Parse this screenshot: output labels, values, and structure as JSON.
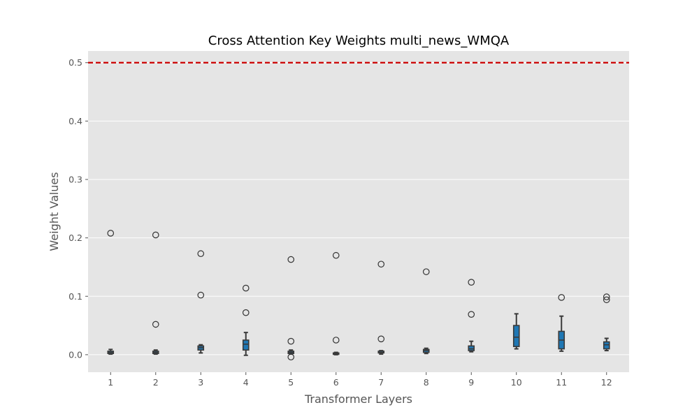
{
  "chart_data": {
    "type": "box",
    "title": "Cross Attention Key Weights multi_news_WMQA",
    "xlabel": "Transformer Layers",
    "ylabel": "Weight Values",
    "ylim": [
      -0.03,
      0.52
    ],
    "yticks": [
      "0.0",
      "0.1",
      "0.2",
      "0.3",
      "0.4",
      "0.5"
    ],
    "grid": true,
    "threshold": {
      "value": 0.5,
      "color": "#cc0000",
      "style": "dashed"
    },
    "box_color": "#1f77b4",
    "background": "#e5e5e5",
    "categories": [
      "1",
      "2",
      "3",
      "4",
      "5",
      "6",
      "7",
      "8",
      "9",
      "10",
      "11",
      "12"
    ],
    "boxes": [
      {
        "whisker_low": 0.001,
        "q1": 0.002,
        "median": 0.004,
        "q3": 0.006,
        "whisker_high": 0.009,
        "outliers": [
          0.208
        ]
      },
      {
        "whisker_low": 0.001,
        "q1": 0.002,
        "median": 0.004,
        "q3": 0.006,
        "whisker_high": 0.008,
        "outliers": [
          0.205,
          0.052
        ]
      },
      {
        "whisker_low": 0.003,
        "q1": 0.008,
        "median": 0.012,
        "q3": 0.015,
        "whisker_high": 0.017,
        "outliers": [
          0.173,
          0.102
        ]
      },
      {
        "whisker_low": -0.001,
        "q1": 0.008,
        "median": 0.018,
        "q3": 0.025,
        "whisker_high": 0.038,
        "outliers": [
          0.114,
          0.072
        ]
      },
      {
        "whisker_low": 0.001,
        "q1": 0.002,
        "median": 0.004,
        "q3": 0.006,
        "whisker_high": 0.008,
        "outliers": [
          0.163,
          0.023,
          -0.004
        ]
      },
      {
        "whisker_low": 0.0,
        "q1": 0.001,
        "median": 0.002,
        "q3": 0.003,
        "whisker_high": 0.004,
        "outliers": [
          0.17,
          0.025
        ]
      },
      {
        "whisker_low": 0.001,
        "q1": 0.003,
        "median": 0.004,
        "q3": 0.006,
        "whisker_high": 0.007,
        "outliers": [
          0.155,
          0.027
        ]
      },
      {
        "whisker_low": 0.002,
        "q1": 0.004,
        "median": 0.007,
        "q3": 0.009,
        "whisker_high": 0.011,
        "outliers": [
          0.142
        ]
      },
      {
        "whisker_low": 0.005,
        "q1": 0.007,
        "median": 0.01,
        "q3": 0.015,
        "whisker_high": 0.023,
        "outliers": [
          0.124,
          0.069
        ]
      },
      {
        "whisker_low": 0.01,
        "q1": 0.014,
        "median": 0.03,
        "q3": 0.05,
        "whisker_high": 0.07,
        "outliers": []
      },
      {
        "whisker_low": 0.006,
        "q1": 0.01,
        "median": 0.025,
        "q3": 0.04,
        "whisker_high": 0.066,
        "outliers": [
          0.098
        ]
      },
      {
        "whisker_low": 0.007,
        "q1": 0.01,
        "median": 0.017,
        "q3": 0.022,
        "whisker_high": 0.028,
        "outliers": [
          0.099,
          0.094
        ]
      }
    ]
  }
}
